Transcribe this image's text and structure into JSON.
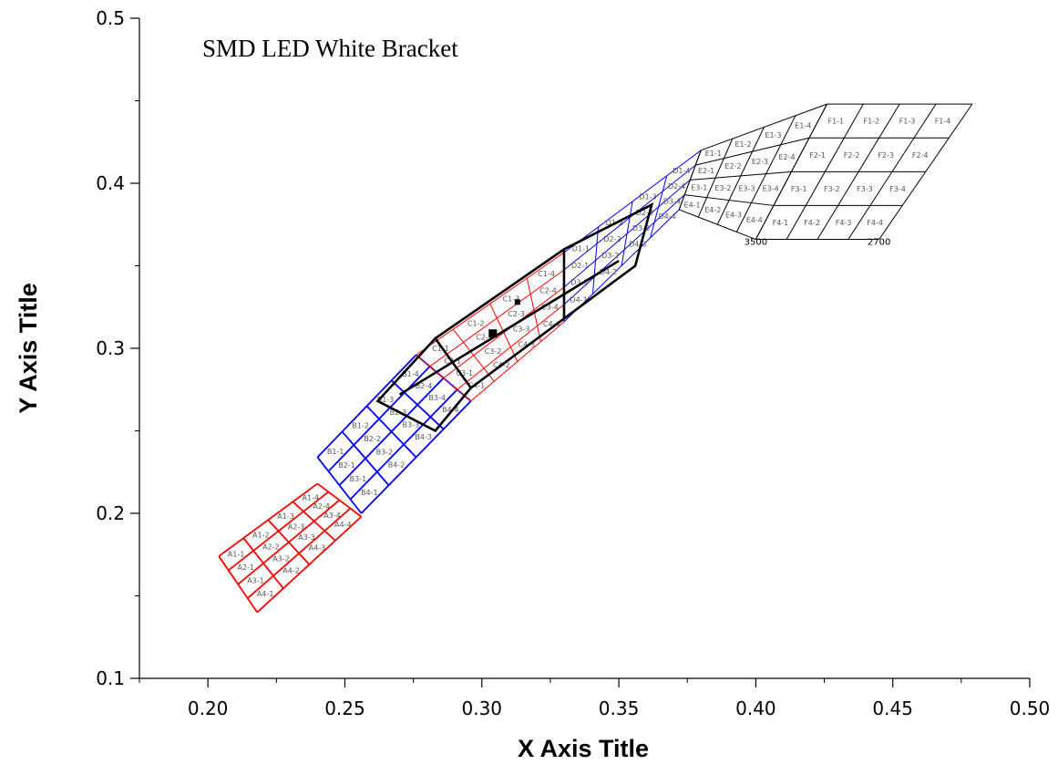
{
  "chart_data": {
    "type": "line",
    "title": "SMD LED    White Bracket",
    "xlabel": "X Axis Title",
    "ylabel": "Y Axis Title",
    "xlim": [
      0.175,
      0.5
    ],
    "ylim": [
      0.1,
      0.5
    ],
    "x_ticks": [
      0.2,
      0.25,
      0.3,
      0.35,
      0.4,
      0.45,
      0.5
    ],
    "x_tick_labels": [
      "0.20",
      "0.25",
      "0.30",
      "0.35",
      "0.40",
      "0.45",
      "0.50"
    ],
    "y_ticks": [
      0.1,
      0.2,
      0.3,
      0.4,
      0.5
    ],
    "y_tick_labels": [
      "0.1",
      "0.2",
      "0.3",
      "0.4",
      "0.5"
    ],
    "grid": false,
    "legend": "none",
    "cct_labels": [
      {
        "text": "3500",
        "x": 0.4,
        "y": 0.366
      },
      {
        "text": "2700",
        "x": 0.445,
        "y": 0.366
      }
    ],
    "bin_grids": [
      {
        "letter": "A",
        "color": "#ff0000",
        "stroke": 1.8,
        "corners": [
          [
            0.204,
            0.174
          ],
          [
            0.24,
            0.218
          ],
          [
            0.256,
            0.198
          ],
          [
            0.218,
            0.14
          ]
        ]
      },
      {
        "letter": "B",
        "color": "#0000ff",
        "stroke": 1.8,
        "corners": [
          [
            0.24,
            0.234
          ],
          [
            0.276,
            0.296
          ],
          [
            0.296,
            0.268
          ],
          [
            0.256,
            0.2
          ]
        ]
      },
      {
        "letter": "C",
        "color": "#ff0000",
        "stroke": 1,
        "corners": [
          [
            0.276,
            0.296
          ],
          [
            0.33,
            0.358
          ],
          [
            0.33,
            0.316
          ],
          [
            0.296,
            0.268
          ]
        ]
      },
      {
        "letter": "D",
        "color": "#0000ff",
        "stroke": 1,
        "corners": [
          [
            0.33,
            0.358
          ],
          [
            0.38,
            0.42
          ],
          [
            0.372,
            0.384
          ],
          [
            0.33,
            0.316
          ]
        ]
      },
      {
        "letter": "E",
        "color": "#000000",
        "stroke": 1,
        "corners": [
          [
            0.38,
            0.42
          ],
          [
            0.426,
            0.448
          ],
          [
            0.4,
            0.366
          ],
          [
            0.372,
            0.384
          ]
        ]
      },
      {
        "letter": "F",
        "color": "#000000",
        "stroke": 1,
        "corners": [
          [
            0.426,
            0.448
          ],
          [
            0.479,
            0.448
          ],
          [
            0.445,
            0.366
          ],
          [
            0.4,
            0.366
          ]
        ]
      }
    ],
    "outlines": [
      {
        "color": "#000000",
        "stroke": 2.6,
        "points": [
          [
            0.262,
            0.268
          ],
          [
            0.283,
            0.306
          ],
          [
            0.33,
            0.36
          ],
          [
            0.362,
            0.387
          ],
          [
            0.356,
            0.35
          ],
          [
            0.33,
            0.318
          ],
          [
            0.296,
            0.276
          ],
          [
            0.283,
            0.25
          ]
        ]
      }
    ],
    "inner_lines": [
      {
        "color": "#000000",
        "stroke": 2.6,
        "points": [
          [
            0.33,
            0.36
          ],
          [
            0.33,
            0.318
          ]
        ]
      },
      {
        "color": "#000000",
        "stroke": 2.6,
        "points": [
          [
            0.283,
            0.306
          ],
          [
            0.296,
            0.276
          ]
        ]
      },
      {
        "color": "#000000",
        "stroke": 2.6,
        "points": [
          [
            0.27,
            0.272
          ],
          [
            0.35,
            0.353
          ]
        ]
      }
    ],
    "markers": [
      {
        "x": 0.304,
        "y": 0.309,
        "size": 9
      },
      {
        "x": 0.313,
        "y": 0.328,
        "size": 6
      }
    ]
  }
}
